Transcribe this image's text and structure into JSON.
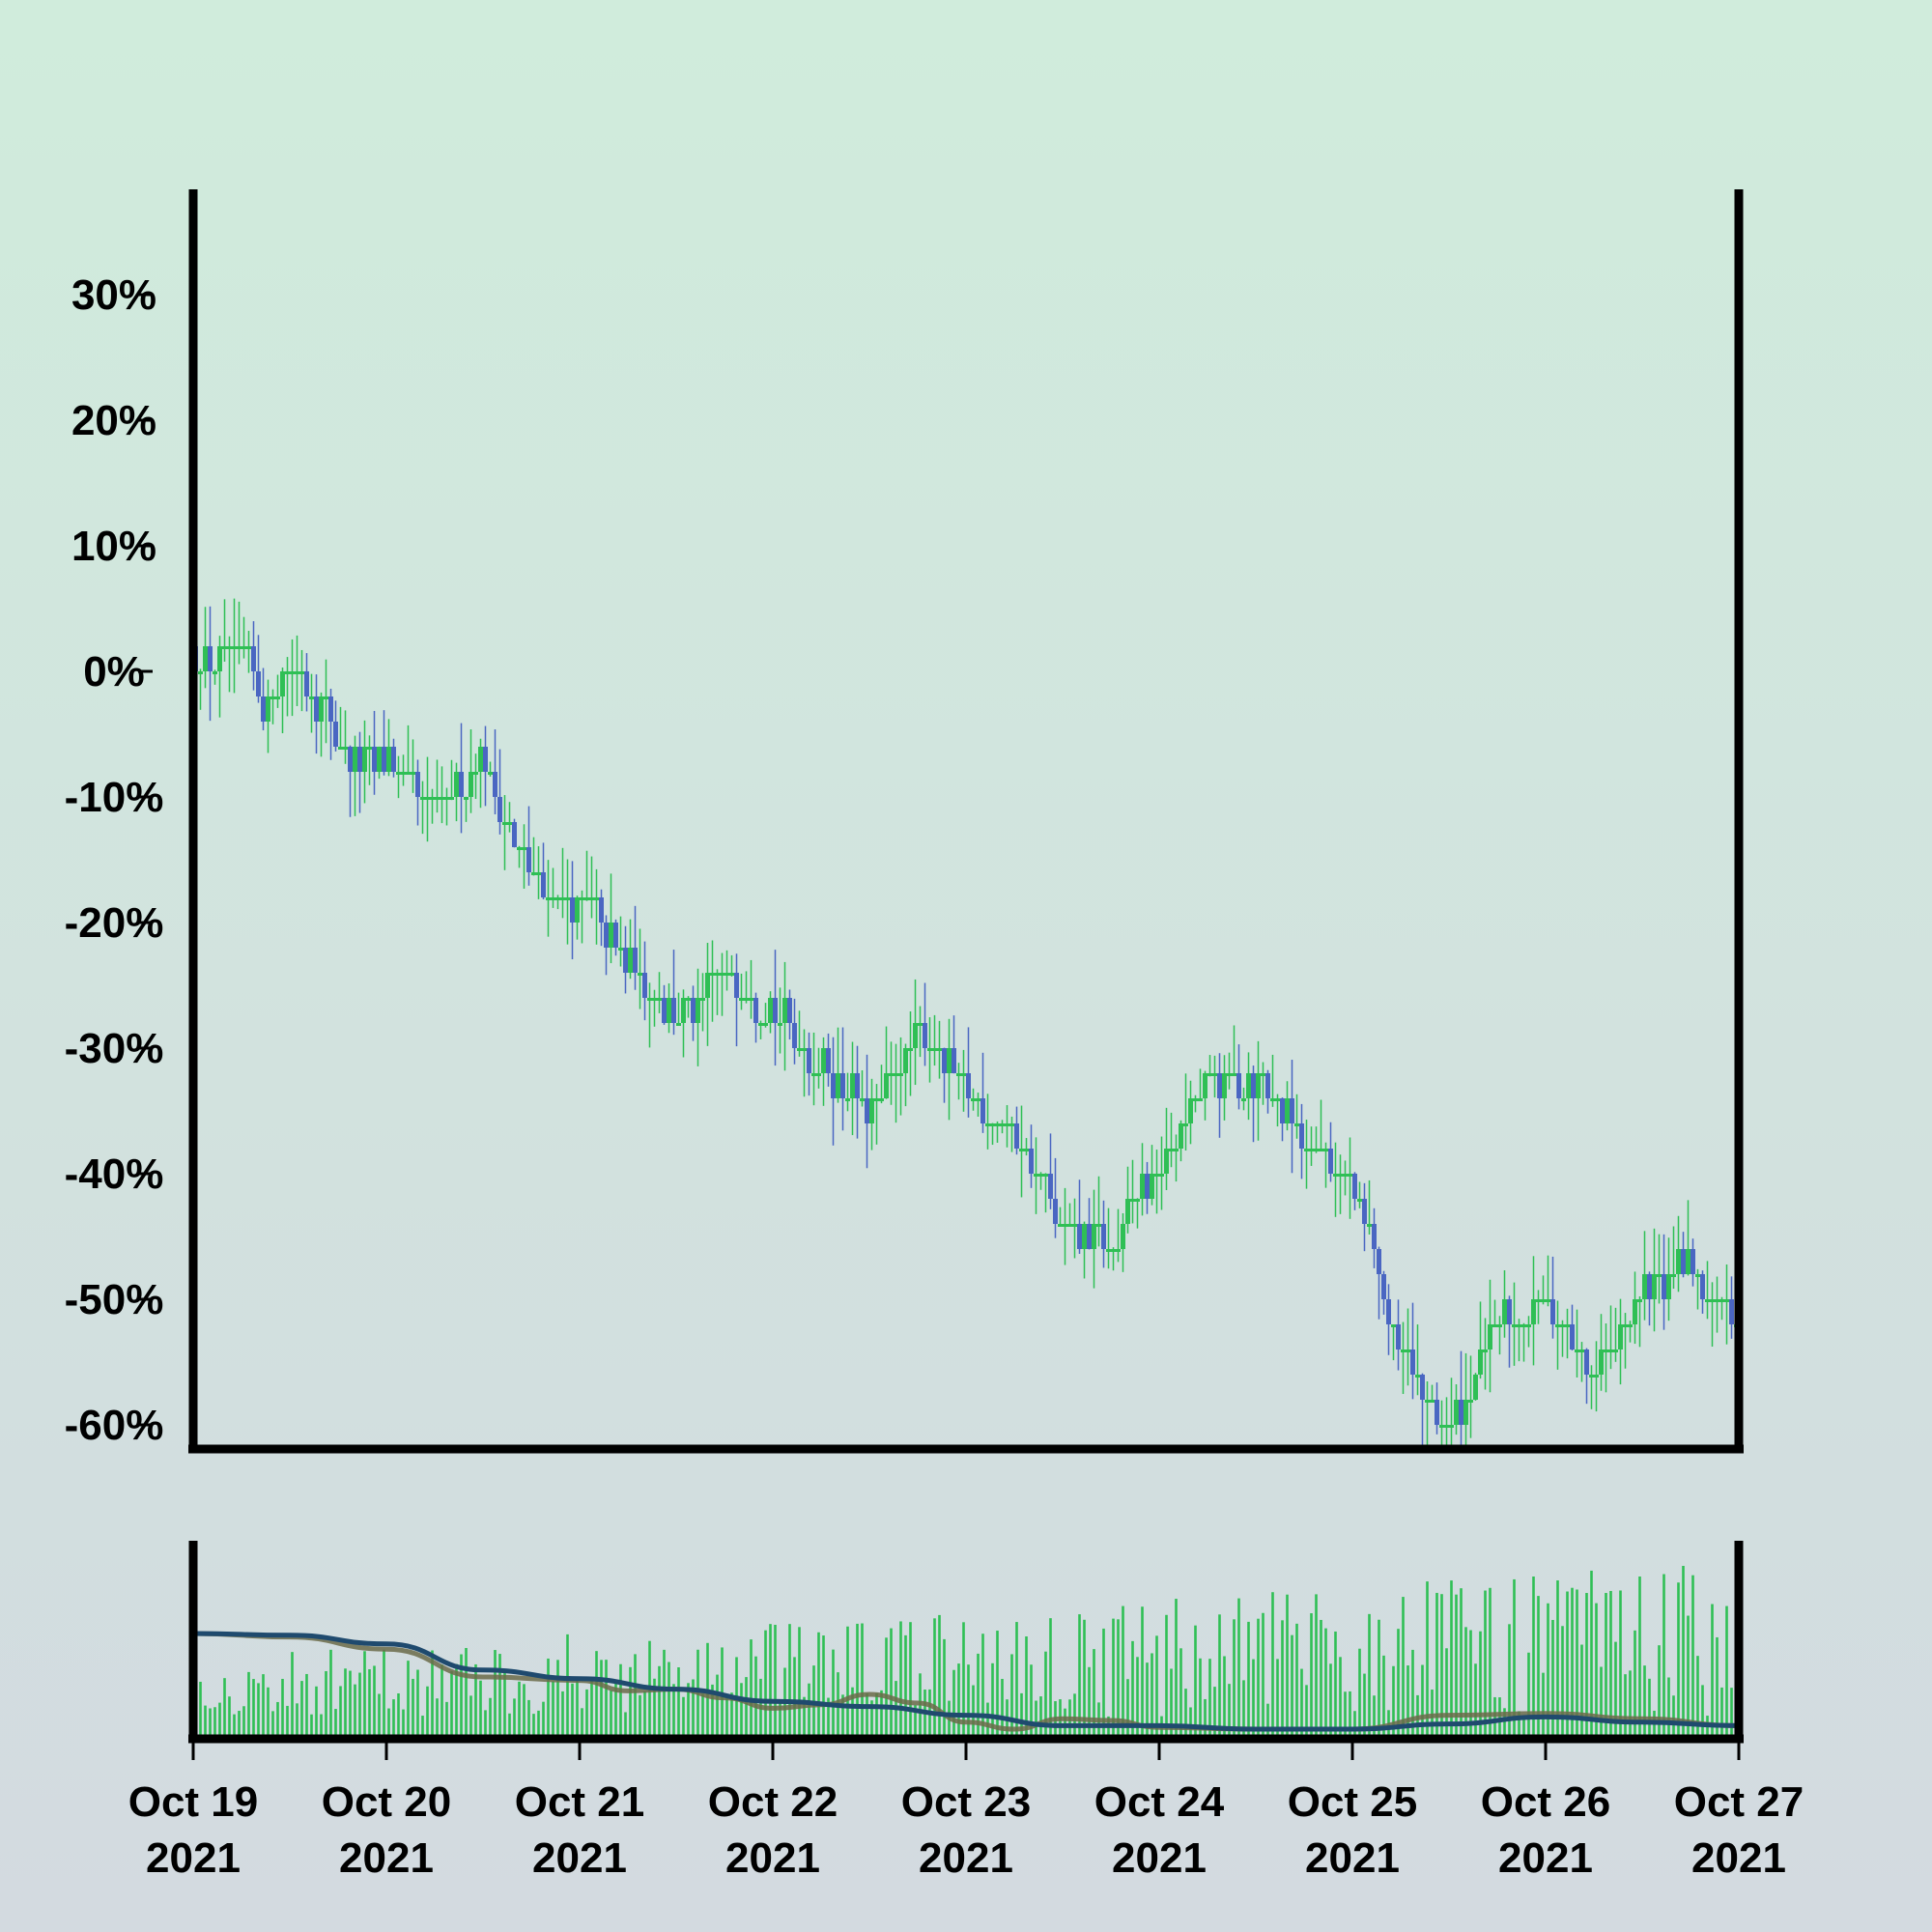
{
  "chart_data": {
    "type": "candlestick",
    "title": "",
    "xlabel": "",
    "ylabel": "",
    "grid": false,
    "y_axis": {
      "unit": "percent",
      "ylim": [
        -62,
        38
      ],
      "ticks": [
        30,
        20,
        10,
        0,
        -10,
        -20,
        -30,
        -40,
        -50,
        -60
      ],
      "tick_labels": [
        "30%",
        "20%",
        "10%",
        "0%",
        "-10%",
        "-20%",
        "-30%",
        "-40%",
        "-50%",
        "-60%"
      ]
    },
    "x_axis": {
      "start": "2021-10-19",
      "end": "2021-10-27",
      "ticks": [
        {
          "date": "2021-10-19",
          "line1": "Oct 19",
          "line2": "2021"
        },
        {
          "date": "2021-10-20",
          "line1": "Oct 20",
          "line2": "2021"
        },
        {
          "date": "2021-10-21",
          "line1": "Oct 21",
          "line2": "2021"
        },
        {
          "date": "2021-10-22",
          "line1": "Oct 22",
          "line2": "2021"
        },
        {
          "date": "2021-10-23",
          "line1": "Oct 23",
          "line2": "2021"
        },
        {
          "date": "2021-10-24",
          "line1": "Oct 24",
          "line2": "2021"
        },
        {
          "date": "2021-10-25",
          "line1": "Oct 25",
          "line2": "2021"
        },
        {
          "date": "2021-10-26",
          "line1": "Oct 26",
          "line2": "2021"
        },
        {
          "date": "2021-10-27",
          "line1": "Oct 27",
          "line2": "2021"
        }
      ]
    },
    "price_path": [
      {
        "date": "2021-10-19 00:00",
        "value": 1
      },
      {
        "date": "2021-10-19 06:00",
        "value": 1
      },
      {
        "date": "2021-10-19 09:00",
        "value": -3
      },
      {
        "date": "2021-10-19 12:00",
        "value": 1
      },
      {
        "date": "2021-10-19 15:00",
        "value": -2
      },
      {
        "date": "2021-10-19 21:00",
        "value": -8
      },
      {
        "date": "2021-10-20 00:00",
        "value": -7
      },
      {
        "date": "2021-10-20 06:00",
        "value": -11
      },
      {
        "date": "2021-10-20 12:00",
        "value": -7
      },
      {
        "date": "2021-10-20 18:00",
        "value": -17
      },
      {
        "date": "2021-10-21 00:00",
        "value": -18
      },
      {
        "date": "2021-10-21 06:00",
        "value": -23
      },
      {
        "date": "2021-10-21 12:00",
        "value": -28
      },
      {
        "date": "2021-10-21 18:00",
        "value": -24
      },
      {
        "date": "2021-10-22 00:00",
        "value": -27
      },
      {
        "date": "2021-10-22 06:00",
        "value": -31
      },
      {
        "date": "2021-10-22 12:00",
        "value": -35
      },
      {
        "date": "2021-10-22 18:00",
        "value": -28
      },
      {
        "date": "2021-10-23 00:00",
        "value": -33
      },
      {
        "date": "2021-10-23 06:00",
        "value": -37
      },
      {
        "date": "2021-10-23 12:00",
        "value": -44
      },
      {
        "date": "2021-10-23 18:00",
        "value": -46
      },
      {
        "date": "2021-10-24 00:00",
        "value": -39
      },
      {
        "date": "2021-10-24 06:00",
        "value": -33
      },
      {
        "date": "2021-10-24 12:00",
        "value": -32
      },
      {
        "date": "2021-10-24 18:00",
        "value": -37
      },
      {
        "date": "2021-10-25 00:00",
        "value": -41
      },
      {
        "date": "2021-10-25 06:00",
        "value": -54
      },
      {
        "date": "2021-10-25 12:00",
        "value": -61
      },
      {
        "date": "2021-10-25 18:00",
        "value": -52
      },
      {
        "date": "2021-10-26 00:00",
        "value": -50
      },
      {
        "date": "2021-10-26 06:00",
        "value": -56
      },
      {
        "date": "2021-10-26 12:00",
        "value": -50
      },
      {
        "date": "2021-10-26 18:00",
        "value": -47
      },
      {
        "date": "2021-10-27 00:00",
        "value": -53
      }
    ],
    "candle_colors": {
      "up": "#2fbf55",
      "down": "#4a66c2"
    },
    "volume_panel": {
      "bar_color": "#2fbf55",
      "fast_ma_color": "#6b6b4a",
      "slow_ma_color": "#1f4a6e",
      "fast_ma": [
        {
          "date": "2021-10-19 00:00",
          "value": 0.55
        },
        {
          "date": "2021-10-19 12:00",
          "value": 0.53
        },
        {
          "date": "2021-10-20 00:00",
          "value": 0.46
        },
        {
          "date": "2021-10-20 12:00",
          "value": 0.3
        },
        {
          "date": "2021-10-21 00:00",
          "value": 0.28
        },
        {
          "date": "2021-10-21 06:00",
          "value": 0.22
        },
        {
          "date": "2021-10-21 12:00",
          "value": 0.23
        },
        {
          "date": "2021-10-21 18:00",
          "value": 0.18
        },
        {
          "date": "2021-10-22 00:00",
          "value": 0.12
        },
        {
          "date": "2021-10-22 06:00",
          "value": 0.14
        },
        {
          "date": "2021-10-22 12:00",
          "value": 0.2
        },
        {
          "date": "2021-10-22 18:00",
          "value": 0.15
        },
        {
          "date": "2021-10-23 00:00",
          "value": 0.04
        },
        {
          "date": "2021-10-23 06:00",
          "value": 0.0
        },
        {
          "date": "2021-10-23 12:00",
          "value": 0.06
        },
        {
          "date": "2021-10-23 18:00",
          "value": 0.05
        },
        {
          "date": "2021-10-24 00:00",
          "value": 0.01
        },
        {
          "date": "2021-10-24 12:00",
          "value": 0.0
        },
        {
          "date": "2021-10-25 00:00",
          "value": 0.0
        },
        {
          "date": "2021-10-25 12:00",
          "value": 0.08
        },
        {
          "date": "2021-10-26 00:00",
          "value": 0.09
        },
        {
          "date": "2021-10-26 12:00",
          "value": 0.06
        },
        {
          "date": "2021-10-27 00:00",
          "value": 0.02
        }
      ],
      "slow_ma": [
        {
          "date": "2021-10-19 00:00",
          "value": 0.55
        },
        {
          "date": "2021-10-19 12:00",
          "value": 0.54
        },
        {
          "date": "2021-10-20 00:00",
          "value": 0.49
        },
        {
          "date": "2021-10-20 12:00",
          "value": 0.34
        },
        {
          "date": "2021-10-21 00:00",
          "value": 0.29
        },
        {
          "date": "2021-10-21 12:00",
          "value": 0.23
        },
        {
          "date": "2021-10-22 00:00",
          "value": 0.16
        },
        {
          "date": "2021-10-22 12:00",
          "value": 0.13
        },
        {
          "date": "2021-10-23 00:00",
          "value": 0.08
        },
        {
          "date": "2021-10-23 12:00",
          "value": 0.02
        },
        {
          "date": "2021-10-24 00:00",
          "value": 0.02
        },
        {
          "date": "2021-10-24 12:00",
          "value": 0.0
        },
        {
          "date": "2021-10-25 00:00",
          "value": 0.0
        },
        {
          "date": "2021-10-25 12:00",
          "value": 0.03
        },
        {
          "date": "2021-10-26 00:00",
          "value": 0.07
        },
        {
          "date": "2021-10-26 12:00",
          "value": 0.04
        },
        {
          "date": "2021-10-27 00:00",
          "value": 0.02
        }
      ]
    }
  }
}
